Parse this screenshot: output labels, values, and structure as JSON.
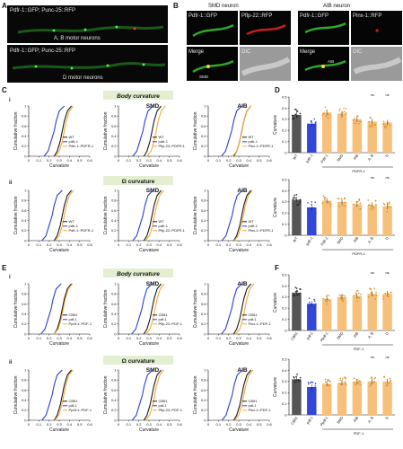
{
  "panels": {
    "A": {
      "letter": "A",
      "img1_label": "Pdfr-1::GFP; Punc-25::RFP",
      "img1_caption": "A, B motor neurons",
      "img2_label": "Pdfr-1::GFP; Punc-25::RFP",
      "img2_caption": "D motor neurons"
    },
    "B": {
      "letter": "B",
      "title_left": "SMD neuron",
      "title_right": "AIB neuron",
      "smd_gfp": "Pdfr-1::GFP",
      "smd_rfp": "Pflp-22::RFP",
      "smd_merge": "Merge",
      "smd_dic": "DIC",
      "smd_cell": "SMD",
      "aib_gfp": "Pdfr-1::GFP",
      "aib_rfp": "Pinx-1::RFP",
      "aib_merge": "Merge",
      "aib_dic": "DIC",
      "aib_cell": "AIB"
    },
    "C": {
      "letter": "C",
      "sub_i": "i",
      "sub_ii": "ii",
      "banner_i": "Body curvature",
      "banner_ii": "Ω curvature",
      "ylabel": "Cumulative fraction",
      "xlabel": "Curvature",
      "col_titles": [
        "",
        "SMD",
        "AIB"
      ],
      "legend_rows": [
        [
          "WT",
          "pdfr-1",
          "Pdfr-1::PDFR-1"
        ],
        [
          "WT",
          "pdfr-1",
          "Pflp-22::PDFR-1"
        ],
        [
          "WT",
          "pdfr-1",
          "Pinx-1::PDFR-1"
        ]
      ]
    },
    "D": {
      "letter": "D",
      "ylabel": "Curvature",
      "xticks": [
        "WT",
        "pdfr-1",
        "Pdfr-1",
        "SMD",
        "AIB",
        "A, B",
        "D"
      ],
      "group_label": "PDFR-1",
      "ns": "ns"
    },
    "E": {
      "letter": "E",
      "sub_i": "i",
      "sub_ii": "ii",
      "banner_i": "Body curvature",
      "banner_ii": "Ω curvature",
      "ylabel": "Cumulative fraction",
      "xlabel": "Curvature",
      "col_titles": [
        "",
        "SMD",
        "AIB"
      ],
      "legend_rows": [
        [
          "CB51",
          "pdf-1",
          "Ppdf-1::PDF-1"
        ],
        [
          "CB51",
          "pdf-1",
          "Pflp-22::PDF-1"
        ],
        [
          "CB51",
          "pdf-1",
          "Pinx-1::PDF-1"
        ]
      ]
    },
    "F": {
      "letter": "F",
      "ylabel": "Curvature",
      "xticks": [
        "CB51",
        "pdf-1",
        "Ppdf-1",
        "SMD",
        "AIB",
        "A, B",
        "D"
      ],
      "group_label": "PDF-1",
      "ns": "ns"
    }
  },
  "colors": {
    "wt": "#1a1a1a",
    "mutant": "#2b3fd6",
    "rescue": "#f3a93a",
    "bar_wt": "#555555",
    "bar_mut": "#3446d8",
    "bar_rescue": "#f7c07a",
    "banner": "#e4efd2"
  },
  "chart_data": [
    {
      "type": "line",
      "panel": "C-i",
      "xlim": [
        0,
        0.6
      ],
      "ylim": [
        0,
        1
      ],
      "xticks": [
        0,
        0.1,
        0.2,
        0.3,
        0.4,
        0.5,
        0.6
      ],
      "yticks": [
        0,
        0.2,
        0.4,
        0.6,
        0.8,
        1
      ],
      "series": [
        {
          "name": "WT",
          "x": [
            0.25,
            0.28,
            0.31,
            0.33,
            0.35,
            0.38,
            0.42
          ],
          "y": [
            0,
            0.1,
            0.3,
            0.5,
            0.7,
            0.9,
            1
          ]
        },
        {
          "name": "pdfr-1",
          "x": [
            0.15,
            0.19,
            0.22,
            0.25,
            0.27,
            0.3,
            0.35
          ],
          "y": [
            0,
            0.1,
            0.3,
            0.5,
            0.7,
            0.9,
            1
          ]
        },
        {
          "name": "Pdfr-1::PDFR-1",
          "x": [
            0.26,
            0.3,
            0.33,
            0.35,
            0.37,
            0.4,
            0.44
          ],
          "y": [
            0,
            0.1,
            0.3,
            0.5,
            0.7,
            0.9,
            1
          ]
        }
      ]
    },
    {
      "type": "bar",
      "panel": "D-top",
      "categories": [
        "WT",
        "pdfr-1",
        "Pdfr-1",
        "SMD",
        "AIB",
        "A, B",
        "D"
      ],
      "values": [
        0.34,
        0.26,
        0.36,
        0.35,
        0.3,
        0.28,
        0.27
      ],
      "ylim": [
        0,
        0.5
      ]
    },
    {
      "type": "bar",
      "panel": "D-bottom",
      "categories": [
        "WT",
        "pdfr-1",
        "Pdfr-1",
        "SMD",
        "AIB",
        "A, B",
        "D"
      ],
      "values": [
        0.32,
        0.25,
        0.31,
        0.3,
        0.28,
        0.27,
        0.26
      ],
      "ylim": [
        0,
        0.5
      ]
    },
    {
      "type": "bar",
      "panel": "F-top",
      "categories": [
        "CB51",
        "pdf-1",
        "Ppdf-1",
        "SMD",
        "AIB",
        "A, B",
        "D"
      ],
      "values": [
        0.34,
        0.24,
        0.28,
        0.3,
        0.31,
        0.33,
        0.33
      ],
      "ylim": [
        0,
        0.5
      ]
    },
    {
      "type": "bar",
      "panel": "F-bottom",
      "categories": [
        "CB51",
        "pdf-1",
        "Ppdf-1",
        "SMD",
        "AIB",
        "A, B",
        "D"
      ],
      "values": [
        0.32,
        0.25,
        0.28,
        0.29,
        0.3,
        0.3,
        0.3
      ],
      "ylim": [
        0,
        0.5
      ]
    }
  ]
}
